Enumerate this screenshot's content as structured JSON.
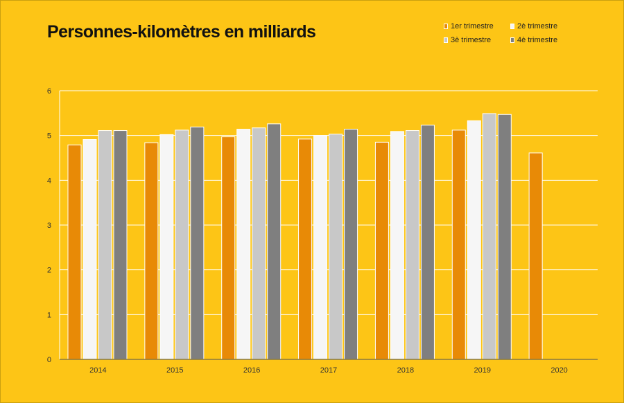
{
  "chart_data": {
    "type": "bar",
    "title": "Personnes-kilomètres en milliards",
    "categories": [
      "2014",
      "2015",
      "2016",
      "2017",
      "2018",
      "2019",
      "2020"
    ],
    "series": [
      {
        "name": "1er trimestre",
        "color": "#E88A06",
        "values": [
          4.79,
          4.84,
          4.97,
          4.92,
          4.85,
          5.12,
          4.61
        ]
      },
      {
        "name": "2è trimestre",
        "color": "#F6F6F6",
        "values": [
          4.91,
          5.02,
          5.14,
          5.0,
          5.09,
          5.33,
          null
        ]
      },
      {
        "name": "3è trimestre",
        "color": "#C8C8C8",
        "values": [
          5.11,
          5.12,
          5.17,
          5.03,
          5.11,
          5.49,
          null
        ]
      },
      {
        "name": "4è trimestre",
        "color": "#7F7F7F",
        "values": [
          5.11,
          5.19,
          5.26,
          5.14,
          5.23,
          5.47,
          null
        ]
      }
    ],
    "y_ticks": [
      "0",
      "1",
      "2",
      "3",
      "4",
      "5",
      "6"
    ],
    "ylim": [
      0,
      6
    ],
    "xlabel": "",
    "ylabel": "",
    "grid": true,
    "legend_position": "top-right"
  }
}
